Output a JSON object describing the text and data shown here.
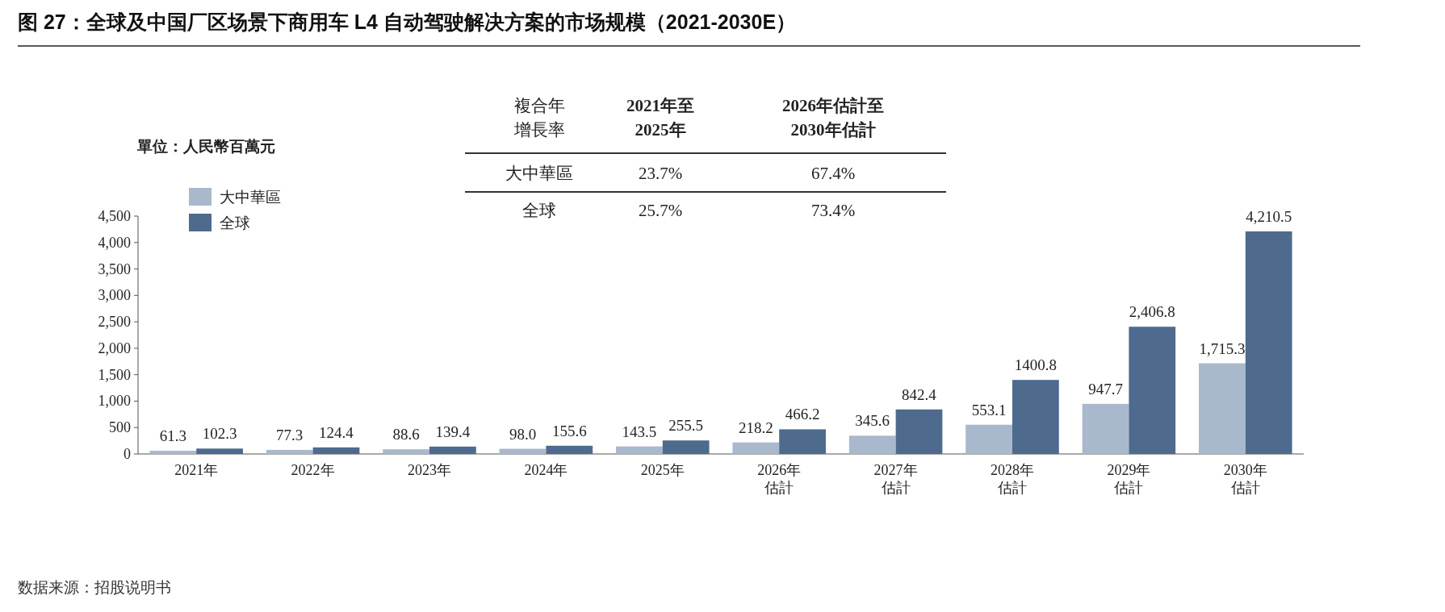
{
  "chart_data": [
    {
      "type": "bar",
      "title": "图 27：全球及中国厂区场景下商用车 L4 自动驾驶解决方案的市场规模（2021-2030E）",
      "ylabel": "單位：人民幣百萬元",
      "categories": [
        "2021年",
        "2022年",
        "2023年",
        "2024年",
        "2025年",
        "2026年估計",
        "2027年估計",
        "2028年估計",
        "2029年估計",
        "2030年估計"
      ],
      "series": [
        {
          "name": "大中華區",
          "color": "#a9b8cd",
          "values": [
            61.3,
            77.3,
            88.6,
            98.0,
            143.5,
            218.2,
            345.6,
            553.1,
            947.7,
            1715.3
          ],
          "value_labels": [
            "61.3",
            "77.3",
            "88.6",
            "98.0",
            "143.5",
            "218.2",
            "345.6",
            "553.1",
            "947.7",
            "1,715.3"
          ]
        },
        {
          "name": "全球",
          "color": "#4e6b8e",
          "values": [
            102.3,
            124.4,
            139.4,
            155.6,
            255.5,
            466.2,
            842.4,
            1400.8,
            2406.8,
            4210.5
          ],
          "value_labels": [
            "102.3",
            "124.4",
            "139.4",
            "155.6",
            "255.5",
            "466.2",
            "842.4",
            "1400.8",
            "2,406.8",
            "4,210.5"
          ]
        }
      ],
      "ylim": [
        0,
        4500
      ],
      "yticks": [
        0,
        500,
        {
          "value": 1000,
          "label": "1,000"
        },
        {
          "value": 1500,
          "label": "1,500"
        },
        {
          "value": 2000,
          "label": "2,000"
        },
        {
          "value": 2500,
          "label": "2,500"
        },
        {
          "value": 3000,
          "label": "3,000"
        },
        {
          "value": 3500,
          "label": "3,500"
        },
        {
          "value": 4000,
          "label": "4,000"
        },
        {
          "value": 4500,
          "label": "4,500"
        }
      ],
      "legend": "top left",
      "grid": false,
      "annotations": [
        "数据来源：招股说明书"
      ]
    },
    {
      "type": "other",
      "title": "複合年增長率",
      "categories": [
        "2021年至2025年",
        "2026年估計至2030年估計"
      ],
      "y_categories": [
        "大中華區",
        "全球"
      ],
      "cell_labels": [
        [
          "23.7%",
          "67.4%"
        ],
        [
          "25.7%",
          "73.4%"
        ]
      ]
    }
  ]
}
